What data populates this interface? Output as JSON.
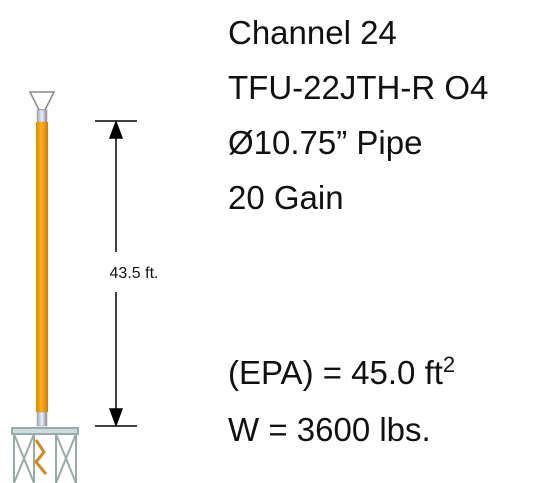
{
  "specs": [
    "Channel 24",
    "TFU-22JTH-R O4",
    "Ø10.75” Pipe",
    "20 Gain"
  ],
  "dimension": {
    "label": "43.5 ft."
  },
  "epa": {
    "text": "(EPA) = 45.0 ft",
    "superscript": "2"
  },
  "weight": "W = 3600 lbs."
}
